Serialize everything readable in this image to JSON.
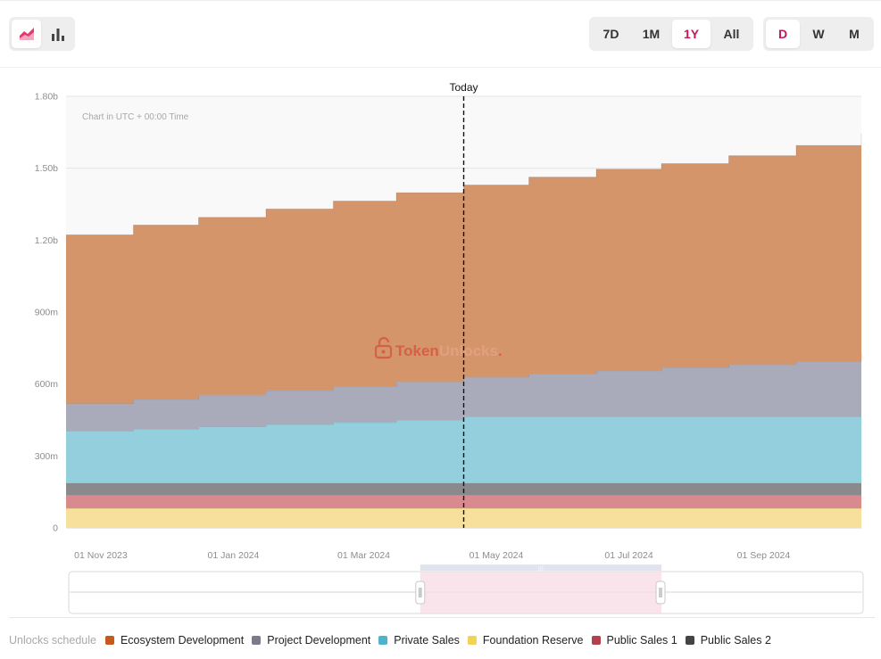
{
  "toolbar": {
    "chart_type_buttons": [
      {
        "name": "area-chart-icon",
        "active": true
      },
      {
        "name": "bar-chart-icon",
        "active": false
      }
    ],
    "range_buttons": [
      {
        "label": "7D",
        "active": false
      },
      {
        "label": "1M",
        "active": false
      },
      {
        "label": "1Y",
        "active": true
      },
      {
        "label": "All",
        "active": false
      }
    ],
    "granularity_buttons": [
      {
        "label": "D",
        "active": true
      },
      {
        "label": "W",
        "active": false
      },
      {
        "label": "M",
        "active": false
      }
    ]
  },
  "watermark": {
    "brand_a": "Token",
    "brand_b": "Unlocks",
    "dot": "."
  },
  "legend": {
    "title": "Unlocks schedule"
  },
  "colors": {
    "accent": "#c2185b",
    "ecosystem": "#d4956a",
    "project": "#a9abbb",
    "private": "#93cfdd",
    "foundation": "#f6e09b",
    "public1": "#d88a8e",
    "public2": "#8a8a8d"
  },
  "chart_data": {
    "type": "area",
    "stacked": true,
    "step": true,
    "note": "Chart in UTC + 00:00 Time",
    "marker": {
      "label": "Today",
      "x": "2024-04-16"
    },
    "x_ticks": [
      "01 Nov 2023",
      "01 Jan 2024",
      "01 Mar 2024",
      "01 May 2024",
      "01 Jul 2024",
      "01 Sep 2024"
    ],
    "y_ticks": [
      "0",
      "300m",
      "600m",
      "900m",
      "1.20b",
      "1.50b",
      "1.80b"
    ],
    "ylim": [
      0,
      1800000000
    ],
    "x": [
      "2023-10-16",
      "2023-11-16",
      "2023-12-16",
      "2024-01-16",
      "2024-02-16",
      "2024-03-16",
      "2024-04-16",
      "2024-05-16",
      "2024-06-16",
      "2024-07-16",
      "2024-08-16",
      "2024-09-16",
      "2024-10-16"
    ],
    "x_end": "2024-10-16",
    "series": [
      {
        "name": "Foundation Reserve",
        "color": "#f6e09b",
        "values": [
          82000000,
          82000000,
          82000000,
          82000000,
          82000000,
          82000000,
          82000000,
          82000000,
          82000000,
          82000000,
          82000000,
          82000000,
          82000000
        ]
      },
      {
        "name": "Public Sales 1",
        "color": "#d88a8e",
        "values": [
          55000000,
          55000000,
          55000000,
          55000000,
          55000000,
          55000000,
          55000000,
          55000000,
          55000000,
          55000000,
          55000000,
          55000000,
          55000000
        ]
      },
      {
        "name": "Public Sales 2",
        "color": "#8a8a8d",
        "values": [
          50000000,
          50000000,
          50000000,
          50000000,
          50000000,
          50000000,
          50000000,
          50000000,
          50000000,
          50000000,
          50000000,
          50000000,
          50000000
        ]
      },
      {
        "name": "Private Sales",
        "color": "#93cfdd",
        "values": [
          217000000,
          226000000,
          235000000,
          244000000,
          253000000,
          262000000,
          278000000,
          278000000,
          278000000,
          278000000,
          278000000,
          278000000,
          278000000
        ]
      },
      {
        "name": "Project Development",
        "color": "#a9abbb",
        "values": [
          115000000,
          124000000,
          133000000,
          142000000,
          151000000,
          160000000,
          165000000,
          178000000,
          191000000,
          204000000,
          217000000,
          230000000,
          267000000
        ]
      },
      {
        "name": "Ecosystem Development",
        "color": "#d4956a",
        "values": [
          703000000,
          726000000,
          740000000,
          757000000,
          772000000,
          789000000,
          800000000,
          820000000,
          840000000,
          850000000,
          870000000,
          900000000,
          913000000
        ]
      }
    ]
  },
  "legend_items": [
    {
      "label": "Ecosystem Development",
      "color": "#c65a1e"
    },
    {
      "label": "Project Development",
      "color": "#7a7b8c"
    },
    {
      "label": "Private Sales",
      "color": "#4fb3cc"
    },
    {
      "label": "Foundation Reserve",
      "color": "#f2d356"
    },
    {
      "label": "Public Sales 1",
      "color": "#b3404a"
    },
    {
      "label": "Public Sales 2",
      "color": "#444444"
    }
  ],
  "navigator": {
    "window": [
      "2024-03-27",
      "2024-07-16"
    ]
  }
}
